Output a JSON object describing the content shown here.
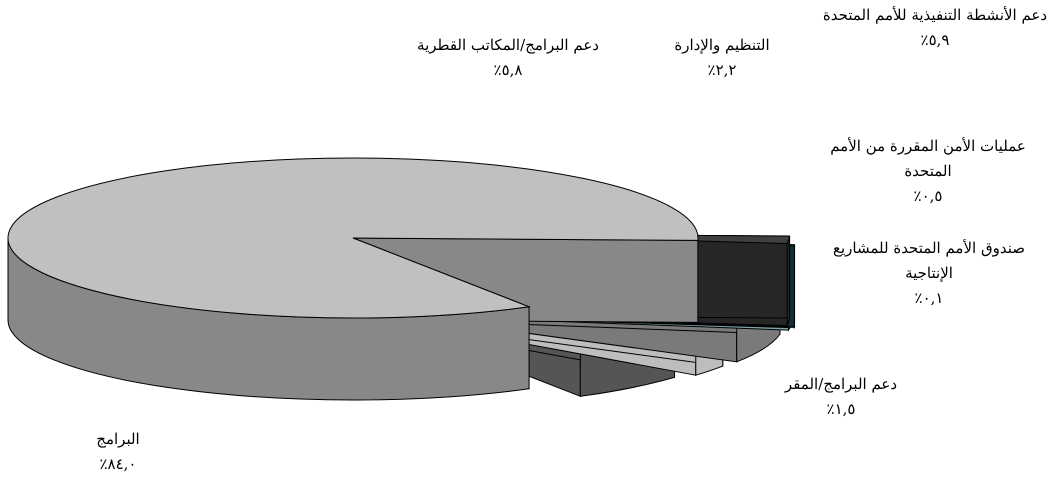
{
  "chart_data": {
    "type": "pie",
    "style": "3d-exploded",
    "slices": [
      {
        "label": "البرامج",
        "value_label": "٨٤,٠٪",
        "value": 84.0,
        "color": "#c0c0c0",
        "side": "#888888"
      },
      {
        "label": "دعم البرامج/المكاتب القطرية",
        "value_label": "٥,٨٪",
        "value": 5.8,
        "color": "#808080",
        "side": "#555555"
      },
      {
        "label": "التنظيم والإدارة",
        "value_label": "٢,٢٪",
        "value": 2.2,
        "color": "#ffffff",
        "side": "#bdbdbd"
      },
      {
        "label": "دعم الأنشطة التنفيذية للأمم المتحدة",
        "value_label": "٥,٩٪",
        "value": 5.9,
        "color": "#bfbfbf",
        "side": "#7a7a7a"
      },
      {
        "label": "عمليات الأمن المقررة من الأمم المتحدة",
        "value_label": "٠,٥٪",
        "value": 0.5,
        "color": "#ccecf0",
        "side": "#7fa5a9"
      },
      {
        "label": "صندوق الأمم المتحدة للمشاريع الإنتاجية",
        "value_label": "٠,١٪",
        "value": 0.1,
        "color": "#1f4e5f",
        "side": "#123040"
      },
      {
        "label": "دعم البرامج/المقر",
        "value_label": "١,٥٪",
        "value": 1.5,
        "color": "#404040",
        "side": "#262626"
      }
    ]
  }
}
